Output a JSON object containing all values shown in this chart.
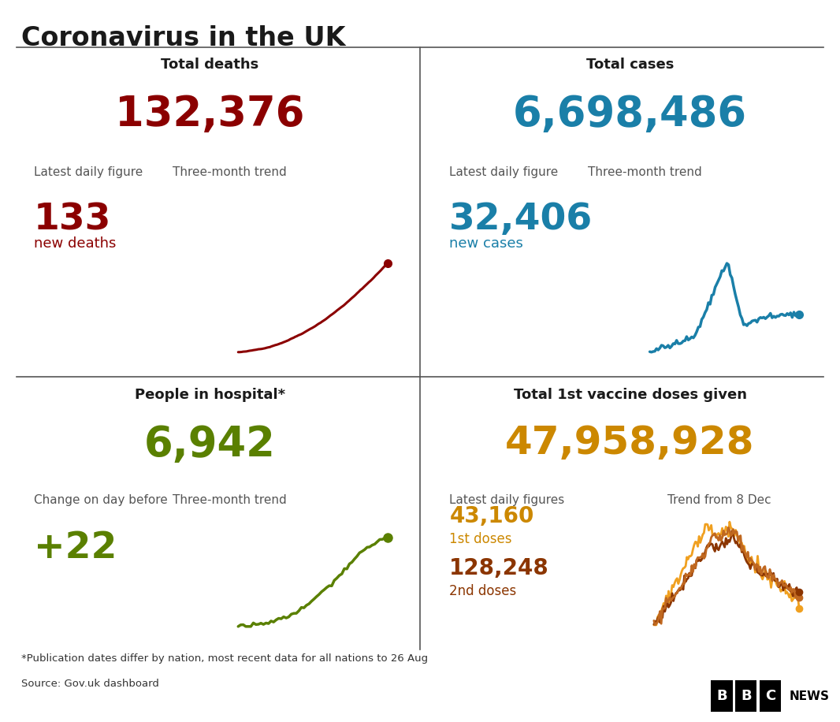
{
  "title": "Coronavirus in the UK",
  "bg_color": "#ffffff",
  "title_color": "#1a1a1a",
  "footnote1": "*Publication dates differ by nation, most recent data for all nations to 26 Aug",
  "footnote2": "Source: Gov.uk dashboard",
  "panels": [
    {
      "section_title": "Total deaths",
      "big_number": "132,376",
      "big_color": "#8b0000",
      "label1": "Latest daily figure",
      "label2": "Three-month trend",
      "daily_number": "133",
      "daily_label": "new deaths",
      "daily_color": "#8b0000",
      "trend_color": "#8b0000"
    },
    {
      "section_title": "Total cases",
      "big_number": "6,698,486",
      "big_color": "#1a7fa8",
      "label1": "Latest daily figure",
      "label2": "Three-month trend",
      "daily_number": "32,406",
      "daily_label": "new cases",
      "daily_color": "#1a7fa8",
      "trend_color": "#1a7fa8"
    },
    {
      "section_title": "People in hospital*",
      "big_number": "6,942",
      "big_color": "#5a8000",
      "label1": "Change on day before",
      "label2": "Three-month trend",
      "daily_number": "+22",
      "daily_label": "",
      "daily_color": "#5a8000",
      "trend_color": "#5a8000"
    },
    {
      "section_title": "Total 1st vaccine doses given",
      "big_number": "47,958,928",
      "big_color": "#cc8800",
      "label1": "Latest daily figures",
      "label2": "Trend from 8 Dec",
      "daily_number1": "43,160",
      "daily_label1": "1st doses",
      "daily_color1": "#cc8800",
      "daily_number2": "128,248",
      "daily_label2": "2nd doses",
      "daily_color2": "#8b3500"
    }
  ]
}
